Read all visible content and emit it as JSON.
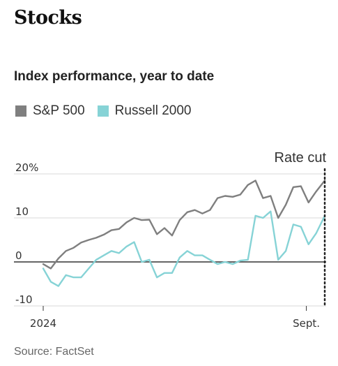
{
  "header": {
    "title": "Stocks",
    "subtitle": "Index performance, year to date"
  },
  "footer": {
    "source": "Source: FactSet"
  },
  "colors": {
    "sp500": "#7f7f7f",
    "russell": "#86d3d6",
    "zero_line": "#333333",
    "grid": "#d9d9d9",
    "annotation": "#222222"
  },
  "chart_data": {
    "type": "line",
    "title": "Index performance, year to date",
    "xlabel": "",
    "ylabel": "",
    "ylim": [
      -10,
      20
    ],
    "xlim": [
      "2024-01-02",
      "2024-09-18"
    ],
    "yticks": [
      20,
      10,
      0,
      -10
    ],
    "ytick_labels": [
      "20%",
      "10",
      "0",
      "-10"
    ],
    "xtick_labels": [
      {
        "date": "2024-01-02",
        "label": "2024"
      },
      {
        "date": "2024-09-01",
        "label": "Sept."
      }
    ],
    "legend": [
      "S&P 500",
      "Russell 2000"
    ],
    "legend_position": "top-left",
    "annotations": [
      {
        "date": "2024-09-18",
        "label": "Rate cut",
        "style": "dotted vertical line"
      }
    ],
    "x": [
      "2024-01-02",
      "2024-01-09",
      "2024-01-16",
      "2024-01-23",
      "2024-01-30",
      "2024-02-06",
      "2024-02-13",
      "2024-02-20",
      "2024-02-27",
      "2024-03-05",
      "2024-03-12",
      "2024-03-19",
      "2024-03-26",
      "2024-04-02",
      "2024-04-09",
      "2024-04-16",
      "2024-04-23",
      "2024-04-30",
      "2024-05-07",
      "2024-05-14",
      "2024-05-21",
      "2024-05-28",
      "2024-06-04",
      "2024-06-11",
      "2024-06-18",
      "2024-06-25",
      "2024-07-02",
      "2024-07-09",
      "2024-07-16",
      "2024-07-23",
      "2024-07-30",
      "2024-08-06",
      "2024-08-13",
      "2024-08-20",
      "2024-08-27",
      "2024-09-03",
      "2024-09-10",
      "2024-09-18"
    ],
    "series": [
      {
        "name": "S&P 500",
        "values": [
          -0.5,
          -1.5,
          0.8,
          2.5,
          3.2,
          4.4,
          5.0,
          5.5,
          6.2,
          7.2,
          7.5,
          9.0,
          10.0,
          9.5,
          9.6,
          6.3,
          7.7,
          6.0,
          9.5,
          11.3,
          11.8,
          11.0,
          11.8,
          14.5,
          15.0,
          14.8,
          15.3,
          17.5,
          18.5,
          14.5,
          15.0,
          10.0,
          13.0,
          17.0,
          17.2,
          13.5,
          16.0,
          18.5
        ]
      },
      {
        "name": "Russell 2000",
        "values": [
          -1.5,
          -4.5,
          -5.5,
          -3.0,
          -3.5,
          -3.5,
          -1.5,
          0.5,
          1.5,
          2.5,
          2.0,
          3.5,
          4.5,
          0.0,
          0.5,
          -3.5,
          -2.5,
          -2.5,
          1.0,
          2.5,
          1.5,
          1.5,
          0.5,
          -0.5,
          0.0,
          -0.5,
          0.3,
          0.5,
          10.5,
          10.0,
          11.5,
          0.5,
          2.5,
          8.5,
          8.0,
          4.0,
          6.5,
          10.5
        ]
      }
    ]
  }
}
